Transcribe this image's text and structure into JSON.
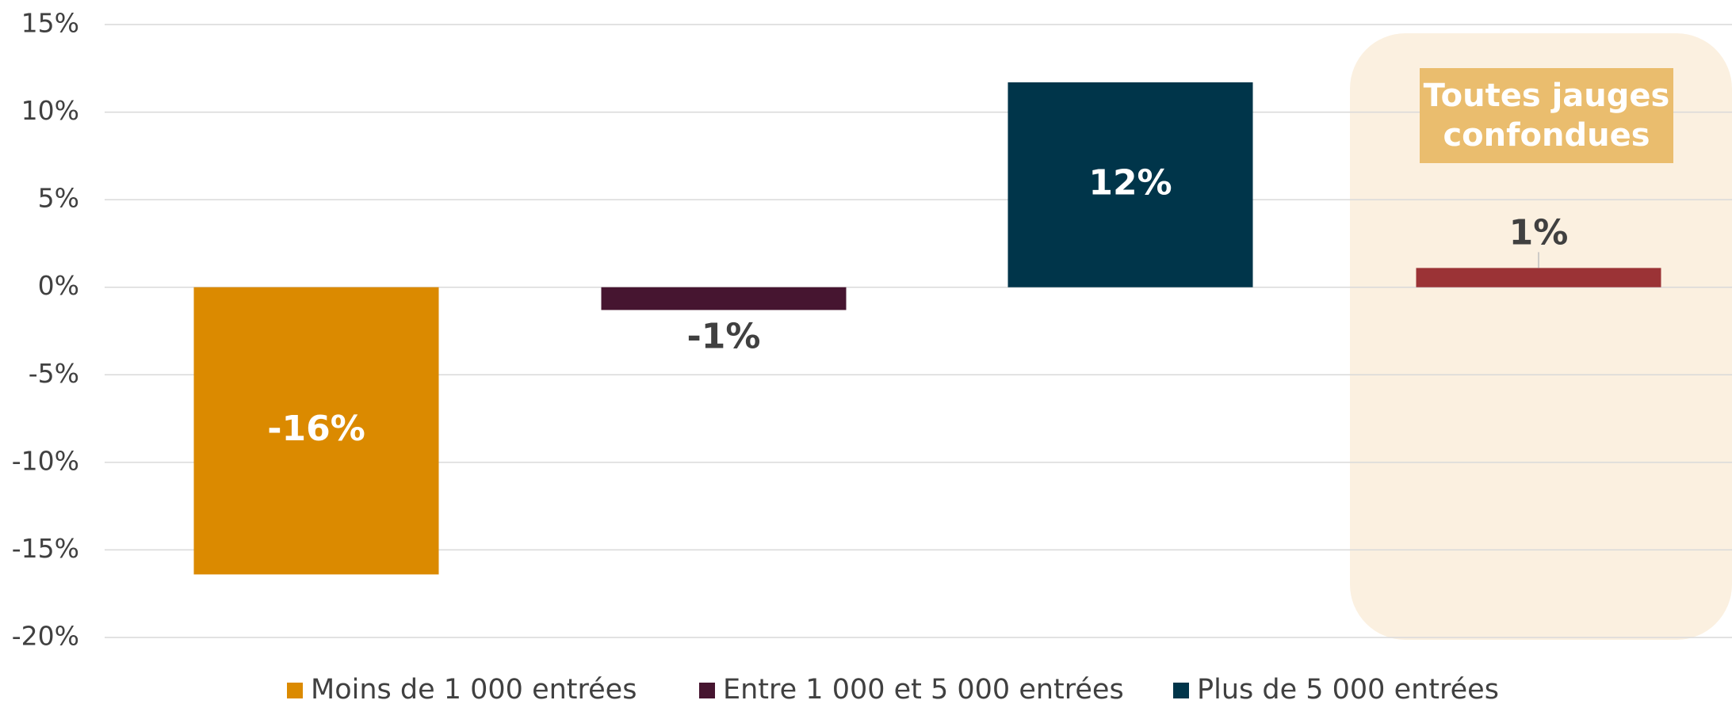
{
  "chart_data": {
    "type": "bar",
    "series": [
      {
        "name": "Moins de 1 000 entrées",
        "color": "#db8a00",
        "values": [
          -16.4
        ],
        "value_labels": [
          "-16%"
        ]
      },
      {
        "name": "Entre 1 000 et 5 000 entrées",
        "color": "#461530",
        "values": [
          -1.3
        ],
        "value_labels": [
          "-1%"
        ]
      },
      {
        "name": "Plus de 5 000 entrées",
        "color": "#00354a",
        "values": [
          11.7
        ],
        "value_labels": [
          "12%"
        ]
      }
    ],
    "total": {
      "label": "Toutes jauges confondues",
      "value": 1.1,
      "value_label": "1%",
      "color": "#9b3336"
    },
    "ylim": [
      -20,
      15
    ],
    "yticks": [
      {
        "value": -20,
        "label": "-20%"
      },
      {
        "value": -15,
        "label": "-15%"
      },
      {
        "value": -10,
        "label": "-10%"
      },
      {
        "value": -5,
        "label": "-5%"
      },
      {
        "value": 0,
        "label": "0%"
      },
      {
        "value": 5,
        "label": "5%"
      },
      {
        "value": 10,
        "label": "10%"
      },
      {
        "value": 15,
        "label": "15%"
      }
    ],
    "grid": true,
    "legend": "bottom"
  }
}
